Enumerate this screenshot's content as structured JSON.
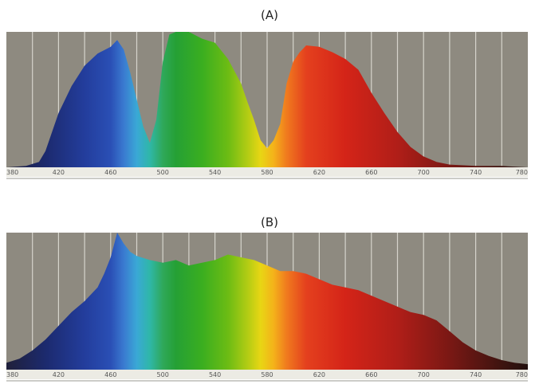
{
  "chart_data": [
    {
      "type": "area",
      "title": "(A)",
      "xlabel": "",
      "ylabel": "",
      "xlim": [
        380,
        780
      ],
      "ylim": [
        0,
        100
      ],
      "grid": true,
      "tick_labels": [
        "380",
        "420",
        "460",
        "500",
        "540",
        "580",
        "620",
        "660",
        "700",
        "740",
        "780"
      ],
      "x": [
        380,
        395,
        405,
        410,
        420,
        430,
        440,
        450,
        460,
        465,
        470,
        475,
        480,
        485,
        490,
        495,
        500,
        505,
        510,
        515,
        520,
        530,
        540,
        550,
        560,
        565,
        570,
        575,
        580,
        585,
        590,
        595,
        600,
        605,
        610,
        620,
        630,
        640,
        650,
        660,
        670,
        680,
        690,
        700,
        710,
        720,
        740,
        760,
        780
      ],
      "values": [
        0,
        1,
        4,
        12,
        40,
        60,
        75,
        84,
        89,
        94,
        87,
        70,
        50,
        30,
        18,
        35,
        78,
        98,
        100,
        100,
        100,
        95,
        92,
        80,
        62,
        48,
        35,
        20,
        14,
        20,
        32,
        62,
        78,
        85,
        90,
        89,
        85,
        80,
        72,
        55,
        40,
        26,
        15,
        8,
        4,
        2,
        1,
        1,
        0
      ]
    },
    {
      "type": "area",
      "title": "(B)",
      "xlabel": "",
      "ylabel": "",
      "xlim": [
        380,
        780
      ],
      "ylim": [
        0,
        100
      ],
      "grid": true,
      "tick_labels": [
        "380",
        "420",
        "460",
        "500",
        "540",
        "580",
        "620",
        "660",
        "700",
        "740",
        "780"
      ],
      "x": [
        380,
        390,
        400,
        410,
        420,
        430,
        440,
        450,
        455,
        460,
        465,
        470,
        475,
        480,
        490,
        500,
        510,
        520,
        530,
        540,
        550,
        560,
        570,
        580,
        590,
        600,
        610,
        620,
        630,
        640,
        650,
        660,
        670,
        680,
        690,
        700,
        710,
        720,
        730,
        740,
        750,
        760,
        770,
        780
      ],
      "values": [
        5,
        8,
        14,
        22,
        32,
        42,
        50,
        60,
        70,
        82,
        100,
        92,
        86,
        83,
        80,
        78,
        80,
        76,
        78,
        80,
        84,
        82,
        80,
        76,
        72,
        72,
        70,
        66,
        62,
        60,
        58,
        54,
        50,
        46,
        42,
        40,
        36,
        28,
        20,
        14,
        10,
        7,
        5,
        4
      ]
    }
  ]
}
